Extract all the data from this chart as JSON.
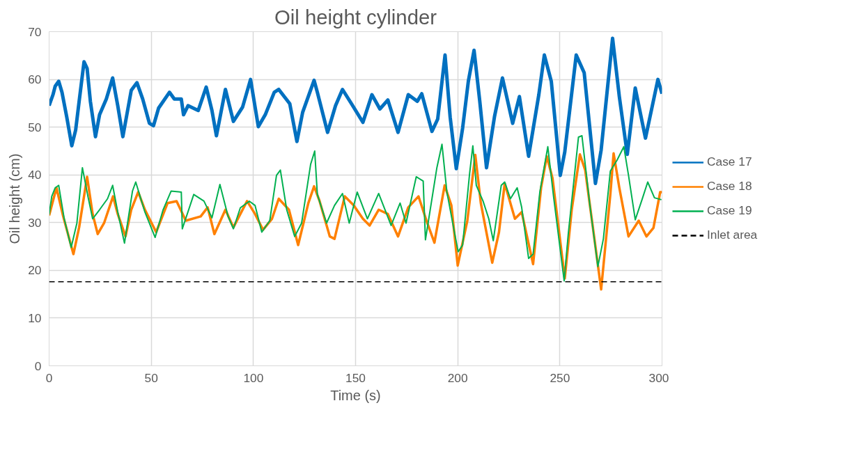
{
  "chart_data": {
    "type": "line",
    "title": "Oil height cylinder",
    "xlabel": "Time (s)",
    "ylabel": "Oil height (cm)",
    "xlim": [
      0,
      300
    ],
    "xticks": [
      0,
      50,
      100,
      150,
      200,
      250,
      300
    ],
    "ylim": [
      0,
      70
    ],
    "yticks": [
      0,
      10,
      20,
      30,
      40,
      50,
      60,
      70
    ],
    "grid": true,
    "legend": "right",
    "series": [
      {
        "name": "Case 17",
        "color": "#0070c0",
        "x": [
          0,
          1.9,
          3,
          4.7,
          6.3,
          8.6,
          11.1,
          13,
          14.7,
          17.1,
          18.6,
          20.2,
          22.7,
          24.7,
          28,
          31.1,
          33.6,
          36.1,
          40.2,
          43,
          45.8,
          49.1,
          51.1,
          53.6,
          58.9,
          61.3,
          64.7,
          65.8,
          68,
          73,
          76.9,
          79.7,
          81.9,
          86.3,
          90.2,
          94.7,
          98.6,
          102.4,
          105.8,
          110.2,
          112.4,
          117.8,
          121.3,
          124.1,
          129.7,
          131.3,
          136.3,
          140.2,
          143.6,
          148,
          153.6,
          158,
          161.9,
          165.8,
          170.8,
          175.8,
          180.2,
          182.4,
          187.4,
          190.2,
          193.8,
          196.3,
          199.3,
          202.4,
          205.2,
          208,
          210.8,
          214.1,
          218,
          221.9,
          226.9,
          230.2,
          234.7,
          239.7,
          242.4,
          245.8,
          250.2,
          252.4,
          258,
          261.9,
          267.4,
          270.2,
          275.8,
          279.1,
          283,
          286.9,
          291.9,
          298,
          300
        ],
        "values": [
          54.5,
          56.8,
          58.6,
          59.6,
          57.3,
          52.2,
          46.1,
          49.4,
          55.4,
          63.7,
          62.3,
          55.4,
          48,
          52.6,
          55.9,
          60.3,
          54.5,
          48,
          57.7,
          59.3,
          55.9,
          50.8,
          50.3,
          54,
          57.3,
          55.9,
          55.9,
          52.6,
          54.5,
          53.5,
          58.4,
          53.5,
          48.2,
          57.9,
          51.2,
          54.2,
          60,
          50.1,
          52.6,
          57.3,
          57.9,
          54.9,
          47,
          53.1,
          59.8,
          57.3,
          48.9,
          54.5,
          57.9,
          54.9,
          51,
          56.8,
          53.8,
          55.7,
          48.9,
          56.8,
          55.4,
          57,
          49.1,
          51.7,
          65.1,
          52.1,
          41.3,
          49.8,
          59.6,
          66.1,
          55.4,
          41.5,
          52.2,
          60.3,
          50.8,
          56.4,
          43.9,
          56.8,
          65.1,
          59.6,
          39.9,
          44.8,
          65.1,
          61.4,
          38.2,
          45.2,
          68.6,
          56.4,
          44.3,
          58.2,
          47.7,
          60,
          57
        ]
      },
      {
        "name": "Case 18",
        "color": "#ff8000",
        "x": [
          0,
          3.6,
          6.9,
          11.9,
          14.7,
          18.6,
          21.3,
          23.8,
          26.9,
          31.3,
          33.6,
          37.4,
          40.2,
          43.6,
          46.9,
          52.4,
          58,
          62.4,
          66.9,
          74.2,
          77.6,
          80.9,
          86.3,
          90.2,
          96.9,
          100.8,
          104.7,
          109.1,
          112.4,
          117.4,
          121.9,
          126.9,
          129.7,
          132.4,
          137.4,
          139.7,
          144.7,
          149.1,
          153.6,
          156.9,
          161.3,
          165.8,
          170.8,
          175.8,
          180.8,
          184.7,
          188.6,
          193.6,
          196.9,
          200,
          204.7,
          208.6,
          211.3,
          216.9,
          220.2,
          223,
          228,
          231.3,
          236.9,
          240.8,
          243.6,
          246.4,
          252.4,
          255.8,
          259.8,
          262.4,
          266.9,
          270.2,
          274.7,
          276.3,
          279.1,
          283.6,
          288.6,
          292.4,
          295.8,
          299.1,
          300
        ],
        "values": [
          31.5,
          37.3,
          31.3,
          23.4,
          29,
          39.6,
          31.8,
          27.6,
          29.9,
          35.5,
          31.8,
          27.1,
          32.7,
          36.4,
          32.7,
          28,
          34.1,
          34.5,
          30.4,
          31.3,
          33.2,
          27.6,
          32.7,
          29,
          34.5,
          31.8,
          28.5,
          30.8,
          35,
          32.7,
          25.3,
          34.1,
          37.6,
          34.5,
          27.1,
          26.6,
          35.5,
          33.6,
          30.8,
          29.4,
          32.7,
          31.8,
          27.1,
          33.2,
          35.5,
          30.4,
          25.8,
          37.8,
          33.6,
          21,
          30.4,
          44.2,
          34.1,
          21.6,
          28,
          38.2,
          30.8,
          32.2,
          21.3,
          37.3,
          43.9,
          39.3,
          18.3,
          32.7,
          44.3,
          41,
          26.6,
          16,
          35.9,
          44.5,
          37.3,
          27.1,
          30.4,
          27.1,
          28.9,
          36.4,
          36.4
        ]
      },
      {
        "name": "Case 19",
        "color": "#00b050",
        "x": [
          0,
          1.3,
          3,
          4.7,
          7.4,
          10.8,
          13.6,
          16.3,
          19,
          21.3,
          24.7,
          28.6,
          31.1,
          33.6,
          36.9,
          40.8,
          42.4,
          46.9,
          51.9,
          55.8,
          59.7,
          64.7,
          65.2,
          70.8,
          75.8,
          79.7,
          83.6,
          87.6,
          90.2,
          93.6,
          98,
          100.8,
          104.1,
          108,
          111.3,
          113.2,
          116.3,
          120.2,
          123.6,
          128,
          130,
          131.3,
          135.8,
          139.7,
          143.6,
          146.9,
          150.8,
          155.8,
          161.3,
          167.4,
          171.8,
          174.7,
          179.7,
          183.1,
          184.2,
          189.8,
          192.3,
          194.7,
          198,
          200.2,
          202.4,
          205.8,
          207.4,
          209.1,
          212.4,
          215.2,
          217.4,
          221.3,
          223,
          225.8,
          229.1,
          231.3,
          234.7,
          236.9,
          240.2,
          244.1,
          246.9,
          252.1,
          254.1,
          259.1,
          260.8,
          264.7,
          268.6,
          271.3,
          274.7,
          278,
          281.3,
          283.6,
          286.9,
          290.2,
          293,
          296.3,
          299.7
        ],
        "values": [
          31.7,
          35.5,
          37.3,
          37.8,
          30.8,
          24.8,
          29.9,
          41.5,
          35.5,
          30.8,
          32.7,
          35,
          37.8,
          32.2,
          25.7,
          36.6,
          38.5,
          32.2,
          26.9,
          32.7,
          36.6,
          36.4,
          28.7,
          35.9,
          34.5,
          31,
          38,
          31.3,
          28.7,
          33.1,
          34.5,
          33.6,
          28,
          30.4,
          39.9,
          41,
          32.7,
          27.1,
          29.9,
          42.2,
          45,
          35.9,
          29.9,
          33.6,
          36.1,
          29.9,
          36.4,
          30.8,
          36.1,
          29.4,
          34.1,
          29.9,
          39.6,
          38.7,
          26.4,
          41.5,
          46.4,
          36.4,
          28.9,
          23.9,
          25.3,
          40.2,
          46.1,
          37.8,
          34.5,
          30.8,
          26.2,
          37.8,
          38.5,
          35,
          37.3,
          33.2,
          22.5,
          23.4,
          36.4,
          45.9,
          35.5,
          17.8,
          27.6,
          47.9,
          48.2,
          33.6,
          20.8,
          26.6,
          40.8,
          43.1,
          45.9,
          39.9,
          30.6,
          34.8,
          38.5,
          35.2,
          34.8
        ]
      }
    ],
    "ref_lines": [
      {
        "axis": "y",
        "value": 17.6,
        "label": "Inlet area",
        "color": "#000000",
        "line_style": "dashed"
      }
    ]
  }
}
